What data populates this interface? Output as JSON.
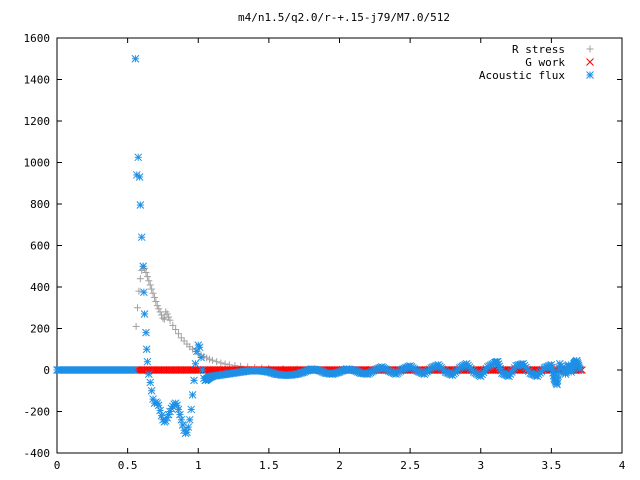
{
  "chart_data": {
    "type": "scatter",
    "title": "m4/n1.5/q2.0/r-+.15-j79/M7.0/512",
    "xlabel": "",
    "ylabel": "",
    "xlim": [
      0,
      4
    ],
    "ylim": [
      -400,
      1600
    ],
    "xticks": [
      "0",
      "0.5",
      "1",
      "1.5",
      "2",
      "2.5",
      "3",
      "3.5",
      "4"
    ],
    "yticks": [
      "-400",
      "-200",
      "0",
      "200",
      "400",
      "600",
      "800",
      "1000",
      "1200",
      "1400",
      "1600"
    ],
    "grid": false,
    "legend_position": "top-right",
    "series": [
      {
        "name": "R stress",
        "marker": "plus",
        "color": "#a0a0a0",
        "points": [
          [
            0.56,
            210
          ],
          [
            0.57,
            300
          ],
          [
            0.58,
            380
          ],
          [
            0.59,
            440
          ],
          [
            0.6,
            480
          ],
          [
            0.61,
            500
          ],
          [
            0.62,
            490
          ],
          [
            0.63,
            470
          ],
          [
            0.64,
            450
          ],
          [
            0.65,
            430
          ],
          [
            0.66,
            410
          ],
          [
            0.67,
            390
          ],
          [
            0.68,
            370
          ],
          [
            0.69,
            350
          ],
          [
            0.7,
            330
          ],
          [
            0.71,
            310
          ],
          [
            0.72,
            295
          ],
          [
            0.73,
            280
          ],
          [
            0.74,
            265
          ],
          [
            0.75,
            250
          ],
          [
            0.76,
            245
          ],
          [
            0.77,
            280
          ],
          [
            0.78,
            270
          ],
          [
            0.79,
            255
          ],
          [
            0.8,
            240
          ],
          [
            0.82,
            215
          ],
          [
            0.84,
            195
          ],
          [
            0.86,
            175
          ],
          [
            0.88,
            155
          ],
          [
            0.9,
            140
          ],
          [
            0.92,
            125
          ],
          [
            0.94,
            112
          ],
          [
            0.96,
            100
          ],
          [
            0.98,
            90
          ],
          [
            1.0,
            80
          ],
          [
            1.02,
            72
          ],
          [
            1.04,
            65
          ],
          [
            1.06,
            58
          ],
          [
            1.08,
            52
          ],
          [
            1.1,
            47
          ],
          [
            1.13,
            40
          ],
          [
            1.16,
            34
          ],
          [
            1.19,
            29
          ],
          [
            1.22,
            25
          ],
          [
            1.26,
            21
          ],
          [
            1.3,
            18
          ],
          [
            1.35,
            15
          ],
          [
            1.4,
            12
          ],
          [
            1.45,
            10
          ],
          [
            1.5,
            8
          ],
          [
            1.6,
            6
          ],
          [
            1.7,
            5
          ],
          [
            1.8,
            4
          ],
          [
            2.0,
            3
          ],
          [
            2.2,
            2
          ],
          [
            2.5,
            2
          ],
          [
            3.0,
            1
          ],
          [
            3.5,
            1
          ],
          [
            3.7,
            1
          ]
        ]
      },
      {
        "name": "G work",
        "marker": "cross",
        "color": "#ff0000",
        "points": [
          [
            0.56,
            0
          ],
          [
            0.6,
            0
          ],
          [
            0.65,
            0
          ],
          [
            0.7,
            0
          ],
          [
            0.75,
            0
          ],
          [
            0.8,
            0
          ],
          [
            0.85,
            0
          ],
          [
            0.9,
            0
          ],
          [
            0.95,
            0
          ],
          [
            1.0,
            0
          ],
          [
            1.05,
            0
          ],
          [
            1.1,
            0
          ],
          [
            1.15,
            0
          ],
          [
            1.2,
            0
          ],
          [
            1.25,
            0
          ],
          [
            1.3,
            0
          ],
          [
            1.35,
            0
          ],
          [
            1.4,
            0
          ],
          [
            1.45,
            0
          ],
          [
            1.5,
            0
          ],
          [
            1.55,
            0
          ],
          [
            1.6,
            0
          ],
          [
            1.65,
            0
          ],
          [
            1.7,
            0
          ],
          [
            1.75,
            0
          ],
          [
            1.8,
            0
          ],
          [
            1.85,
            0
          ],
          [
            1.9,
            0
          ],
          [
            1.95,
            0
          ],
          [
            2.0,
            0
          ],
          [
            2.05,
            0
          ],
          [
            2.1,
            0
          ],
          [
            2.15,
            0
          ],
          [
            2.2,
            0
          ],
          [
            2.25,
            0
          ],
          [
            2.3,
            0
          ],
          [
            2.35,
            0
          ],
          [
            2.4,
            0
          ],
          [
            2.45,
            0
          ],
          [
            2.5,
            0
          ],
          [
            2.55,
            0
          ],
          [
            2.6,
            0
          ],
          [
            2.65,
            0
          ],
          [
            2.7,
            0
          ],
          [
            2.75,
            0
          ],
          [
            2.8,
            0
          ],
          [
            2.85,
            0
          ],
          [
            2.9,
            0
          ],
          [
            2.95,
            0
          ],
          [
            3.0,
            0
          ],
          [
            3.05,
            0
          ],
          [
            3.1,
            0
          ],
          [
            3.15,
            0
          ],
          [
            3.2,
            0
          ],
          [
            3.25,
            0
          ],
          [
            3.3,
            0
          ],
          [
            3.35,
            0
          ],
          [
            3.4,
            0
          ],
          [
            3.45,
            0
          ],
          [
            3.5,
            0
          ],
          [
            3.55,
            0
          ],
          [
            3.6,
            0
          ],
          [
            3.65,
            0
          ],
          [
            3.7,
            0
          ]
        ]
      },
      {
        "name": "Acoustic flux",
        "marker": "star",
        "color": "#1e90e6",
        "points": [
          [
            0.0,
            0
          ],
          [
            0.05,
            0
          ],
          [
            0.1,
            0
          ],
          [
            0.15,
            0
          ],
          [
            0.2,
            0
          ],
          [
            0.25,
            0
          ],
          [
            0.3,
            0
          ],
          [
            0.35,
            0
          ],
          [
            0.4,
            0
          ],
          [
            0.45,
            0
          ],
          [
            0.5,
            0
          ],
          [
            0.55,
            0
          ],
          [
            0.555,
            1500
          ],
          [
            0.565,
            940
          ],
          [
            0.575,
            1025
          ],
          [
            0.585,
            930
          ],
          [
            0.59,
            795
          ],
          [
            0.6,
            640
          ],
          [
            0.61,
            500
          ],
          [
            0.615,
            375
          ],
          [
            0.62,
            270
          ],
          [
            0.63,
            180
          ],
          [
            0.635,
            100
          ],
          [
            0.64,
            40
          ],
          [
            0.65,
            -20
          ],
          [
            0.66,
            -60
          ],
          [
            0.67,
            -100
          ],
          [
            0.68,
            -140
          ],
          [
            0.69,
            -160
          ],
          [
            0.7,
            -155
          ],
          [
            0.71,
            -160
          ],
          [
            0.72,
            -170
          ],
          [
            0.73,
            -195
          ],
          [
            0.74,
            -220
          ],
          [
            0.75,
            -240
          ],
          [
            0.76,
            -250
          ],
          [
            0.77,
            -245
          ],
          [
            0.78,
            -230
          ],
          [
            0.79,
            -215
          ],
          [
            0.8,
            -200
          ],
          [
            0.81,
            -185
          ],
          [
            0.82,
            -175
          ],
          [
            0.83,
            -165
          ],
          [
            0.84,
            -160
          ],
          [
            0.85,
            -170
          ],
          [
            0.86,
            -190
          ],
          [
            0.87,
            -215
          ],
          [
            0.88,
            -240
          ],
          [
            0.89,
            -265
          ],
          [
            0.9,
            -290
          ],
          [
            0.91,
            -305
          ],
          [
            0.92,
            -300
          ],
          [
            0.93,
            -275
          ],
          [
            0.94,
            -240
          ],
          [
            0.95,
            -190
          ],
          [
            0.96,
            -120
          ],
          [
            0.97,
            -50
          ],
          [
            0.98,
            30
          ],
          [
            0.99,
            90
          ],
          [
            1.0,
            120
          ],
          [
            1.01,
            110
          ],
          [
            1.02,
            60
          ],
          [
            1.03,
            0
          ],
          [
            1.04,
            -40
          ],
          [
            1.05,
            -50
          ],
          [
            1.06,
            -45
          ],
          [
            1.07,
            -40
          ],
          [
            1.08,
            -35
          ],
          [
            1.1,
            -30
          ],
          [
            1.15,
            -25
          ],
          [
            1.2,
            -20
          ],
          [
            1.25,
            -15
          ],
          [
            1.3,
            -10
          ],
          [
            1.35,
            -5
          ],
          [
            1.4,
            -3
          ],
          [
            1.45,
            -5
          ],
          [
            1.5,
            -10
          ],
          [
            1.55,
            -20
          ],
          [
            1.6,
            -25
          ],
          [
            1.65,
            -25
          ],
          [
            1.7,
            -20
          ],
          [
            1.75,
            -10
          ],
          [
            1.8,
            5
          ],
          [
            1.85,
            0
          ],
          [
            1.9,
            -15
          ],
          [
            1.95,
            -20
          ],
          [
            2.0,
            -10
          ],
          [
            2.05,
            5
          ],
          [
            2.1,
            0
          ],
          [
            2.15,
            -15
          ],
          [
            2.2,
            -20
          ],
          [
            2.25,
            0
          ],
          [
            2.3,
            15
          ],
          [
            2.35,
            -5
          ],
          [
            2.4,
            -20
          ],
          [
            2.45,
            5
          ],
          [
            2.5,
            20
          ],
          [
            2.55,
            -5
          ],
          [
            2.6,
            -20
          ],
          [
            2.65,
            10
          ],
          [
            2.7,
            25
          ],
          [
            2.75,
            -10
          ],
          [
            2.8,
            -25
          ],
          [
            2.85,
            10
          ],
          [
            2.9,
            30
          ],
          [
            2.95,
            -10
          ],
          [
            3.0,
            -30
          ],
          [
            3.05,
            15
          ],
          [
            3.1,
            35
          ],
          [
            3.12,
            40
          ],
          [
            3.15,
            -15
          ],
          [
            3.2,
            -30
          ],
          [
            3.25,
            20
          ],
          [
            3.3,
            30
          ],
          [
            3.35,
            -15
          ],
          [
            3.4,
            -30
          ],
          [
            3.45,
            10
          ],
          [
            3.5,
            25
          ],
          [
            3.52,
            -40
          ],
          [
            3.54,
            -70
          ],
          [
            3.56,
            30
          ],
          [
            3.6,
            -20
          ],
          [
            3.62,
            25
          ],
          [
            3.64,
            -10
          ],
          [
            3.66,
            30
          ],
          [
            3.68,
            45
          ],
          [
            3.7,
            5
          ]
        ]
      }
    ]
  }
}
